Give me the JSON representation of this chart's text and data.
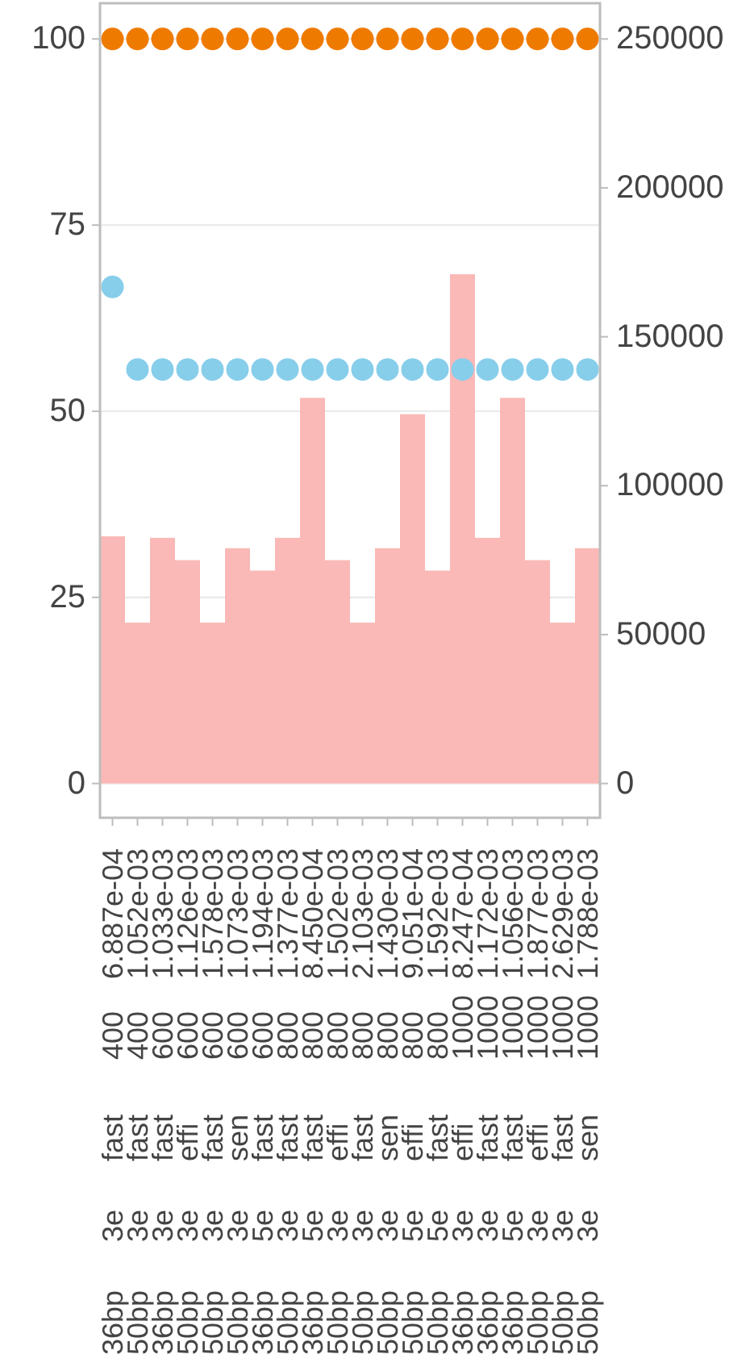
{
  "chart_data": {
    "type": "bar",
    "categories": [
      "36bp 3e fast 400 6.887e-04",
      "50bp 3e fast 400 1.052e-03",
      "36bp 3e fast 600 1.033e-03",
      "50bp 3e effi 600 1.126e-03",
      "50bp 3e fast 600 1.578e-03",
      "50bp 3e sen 600 1.073e-03",
      "36bp 5e fast 600 1.194e-03",
      "50bp 3e fast 800 1.377e-03",
      "36bp 5e fast 800 8.450e-04",
      "50bp 3e effi 800 1.502e-03",
      "50bp 3e fast 800 2.103e-03",
      "50bp 3e sen 800 1.430e-03",
      "50bp 5e effi 800 9.051e-04",
      "50bp 5e fast 800 1.592e-03",
      "36bp 3e effi 1000 8.247e-04",
      "36bp 3e fast 1000 1.172e-03",
      "36bp 5e fast 1000 1.056e-03",
      "50bp 3e effi 1000 1.877e-03",
      "50bp 3e fast 1000 2.629e-03",
      "50bp 3e sen 1000 1.788e-03"
    ],
    "series": [
      {
        "axis": "y2",
        "color": "#fab9b6",
        "values": [
          83000,
          54000,
          82500,
          75000,
          54000,
          79000,
          71500,
          82500,
          129500,
          75000,
          54000,
          79000,
          124000,
          71500,
          171000,
          82500,
          129500,
          75000,
          54000,
          79000
        ]
      },
      {
        "type": "scatter",
        "color": "#ef7a00",
        "values": [
          100,
          100,
          100,
          100,
          100,
          100,
          100,
          100,
          100,
          100,
          100,
          100,
          100,
          100,
          100,
          100,
          100,
          100,
          100,
          100
        ]
      },
      {
        "type": "scatter",
        "color": "#87ceeb",
        "values": [
          66.7,
          55.6,
          55.6,
          55.6,
          55.6,
          55.6,
          55.6,
          55.6,
          55.6,
          55.6,
          55.6,
          55.6,
          55.6,
          55.6,
          55.6,
          55.6,
          55.6,
          55.6,
          55.6,
          55.6
        ]
      }
    ],
    "ylim": [
      -4.6,
      104.8
    ],
    "yticks": [
      0,
      25,
      50,
      75,
      100
    ],
    "y2lim": [
      -11500,
      262000
    ],
    "y2ticks": [
      0,
      50000,
      100000,
      150000,
      200000,
      250000
    ],
    "grid": "y",
    "marker": "circle"
  }
}
